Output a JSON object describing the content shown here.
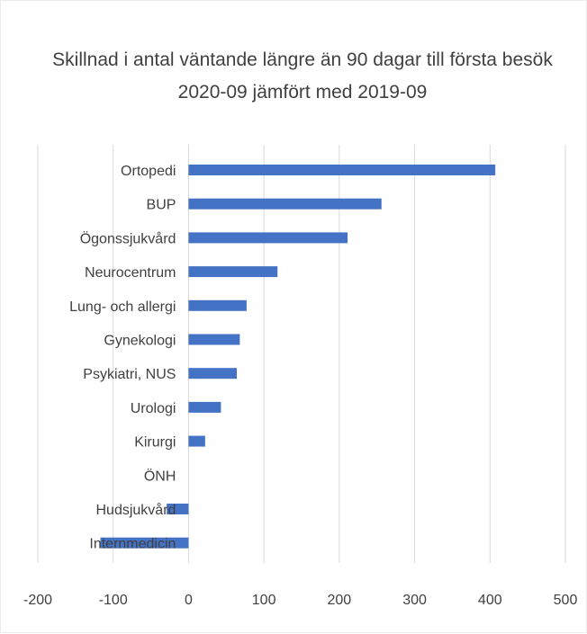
{
  "chart_data": {
    "type": "bar",
    "orientation": "horizontal",
    "title": "Skillnad i antal väntande längre än 90 dagar till första besök",
    "subtitle": "2020-09 jämfört med 2019-09",
    "categories": [
      "Ortopedi",
      "BUP",
      "Ögonssjukvård",
      "Neurocentrum",
      "Lung- och allergi",
      "Gynekologi",
      "Psykiatri, NUS",
      "Urologi",
      "Kirurgi",
      "ÖNH",
      "Hudsjukvård",
      "Internmedicin"
    ],
    "values": [
      407,
      256,
      211,
      118,
      77,
      68,
      64,
      43,
      22,
      0,
      -29,
      -117
    ],
    "xlim": [
      -200,
      500
    ],
    "xticks": [
      -200,
      -100,
      0,
      100,
      200,
      300,
      400,
      500
    ],
    "xtick_labels": [
      "-200",
      "-100",
      "0",
      "100",
      "200",
      "300",
      "400",
      "500"
    ],
    "grid": true,
    "colors": {
      "bar": "#4472c4",
      "grid": "#d9d9d9",
      "text": "#404040"
    }
  }
}
